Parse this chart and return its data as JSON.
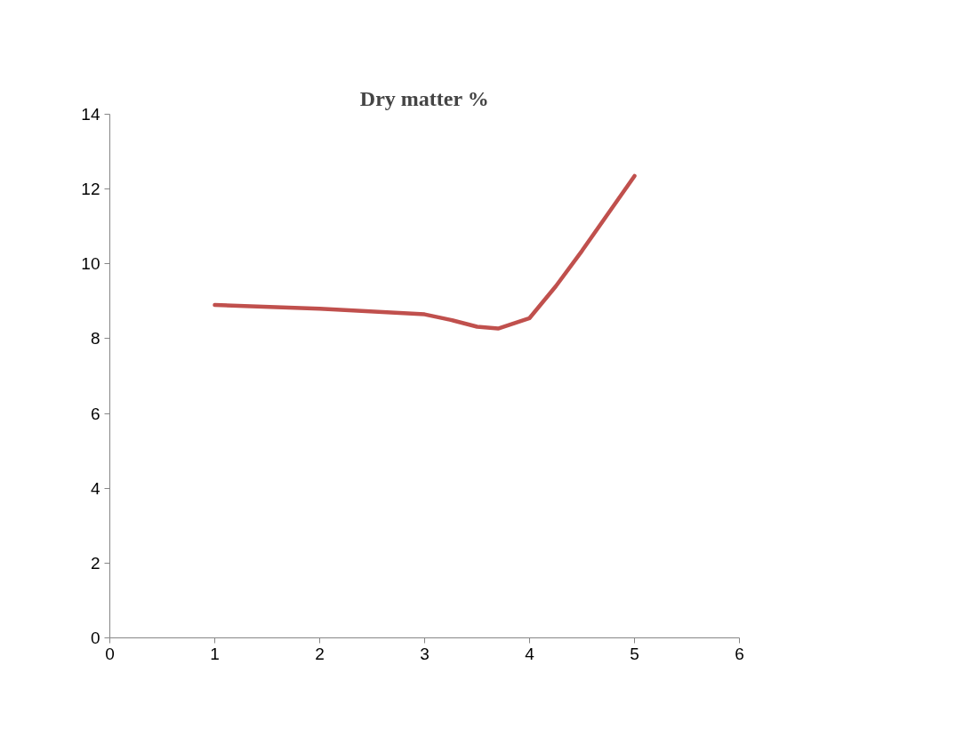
{
  "chart_data": {
    "type": "line",
    "title": "Dry matter %",
    "x": [
      1,
      2,
      3,
      3.25,
      3.5,
      3.7,
      4,
      4.25,
      4.5,
      4.75,
      5
    ],
    "series": [
      {
        "color": "#c0504d",
        "values": [
          8.9,
          8.8,
          8.65,
          8.5,
          8.32,
          8.27,
          8.55,
          9.4,
          10.35,
          11.35,
          12.35
        ]
      }
    ],
    "xlim": [
      0,
      6
    ],
    "xticks": [
      0,
      1,
      2,
      3,
      4,
      5,
      6
    ],
    "ylim": [
      0,
      14
    ],
    "yticks": [
      0,
      2,
      4,
      6,
      8,
      10,
      12,
      14
    ],
    "grid": false,
    "marker": "none",
    "line_style": "solid"
  }
}
